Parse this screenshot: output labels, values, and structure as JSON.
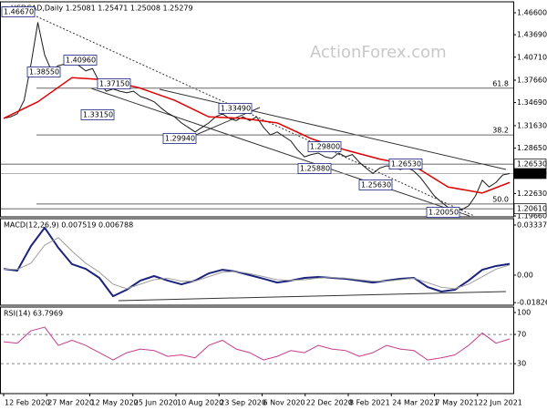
{
  "watermark": "ActionForex.com",
  "chart_data": [
    {
      "type": "line",
      "title": "USDCAD,Daily 1.25081 1.25471 1.25008 1.25279",
      "xlim": [
        0,
        74
      ],
      "ylim": [
        1.1954,
        1.4805
      ],
      "yticks": [
        {
          "value": 1.466,
          "label": "1.46600"
        },
        {
          "value": 1.4369,
          "label": "1.43690"
        },
        {
          "value": 1.4071,
          "label": "1.40710"
        },
        {
          "value": 1.3766,
          "label": "1.37660"
        },
        {
          "value": 1.3469,
          "label": "1.34690"
        },
        {
          "value": 1.3163,
          "label": "1.31630"
        },
        {
          "value": 1.2865,
          "label": "1.28650"
        },
        {
          "value": 1.2263,
          "label": "1.22630"
        },
        {
          "value": 1.1966,
          "label": "1.19660"
        }
      ],
      "series": [
        {
          "name": "USDCAD",
          "color": "#1a1a1a",
          "values": [
            1.326,
            1.328,
            1.332,
            1.35,
            1.398,
            1.453,
            1.41,
            1.389,
            1.396,
            1.398,
            1.401,
            1.396,
            1.389,
            1.392,
            1.374,
            1.362,
            1.365,
            1.362,
            1.36,
            1.362,
            1.355,
            1.352,
            1.348,
            1.34,
            1.333,
            1.328,
            1.32,
            1.314,
            1.308,
            1.314,
            1.32,
            1.328,
            1.332,
            1.326,
            1.323,
            1.328,
            1.323,
            1.328,
            1.314,
            1.304,
            1.308,
            1.302,
            1.296,
            1.284,
            1.275,
            1.278,
            1.28,
            1.275,
            1.273,
            1.28,
            1.275,
            1.278,
            1.268,
            1.26,
            1.253,
            1.26,
            1.263,
            1.262,
            1.258,
            1.261,
            1.256,
            1.247,
            1.235,
            1.223,
            1.215,
            1.208,
            1.205,
            1.205,
            1.21,
            1.223,
            1.244,
            1.235,
            1.241,
            1.251,
            1.25279
          ]
        },
        {
          "name": "MA",
          "color": "#e00000",
          "x": [
            0,
            5,
            10,
            15,
            20,
            25,
            30,
            35,
            40,
            45,
            50,
            55,
            60,
            65,
            70,
            74
          ],
          "values": [
            1.326,
            1.348,
            1.38,
            1.377,
            1.366,
            1.35,
            1.328,
            1.326,
            1.32,
            1.299,
            1.284,
            1.272,
            1.263,
            1.235,
            1.227,
            1.241
          ]
        }
      ],
      "annotations": [
        "1.46670",
        "1.38550",
        "1.40960",
        "1.37150",
        "1.33150",
        "1.29940",
        "1.33490",
        "1.29800",
        "1.25880",
        "1.25630",
        "1.26530",
        "1.20050"
      ],
      "fib_levels": [
        {
          "label": "61.8",
          "price": 1.366
        },
        {
          "label": "38.2",
          "price": 1.304
        },
        {
          "label": "50.0",
          "price": 1.2124
        }
      ],
      "price_levels": [
        {
          "value": 1.2653,
          "label": "1.26530"
        },
        {
          "value": 1.25279,
          "label": "1.25279",
          "current": true
        },
        {
          "value": 1.2061,
          "label": "1.20610"
        }
      ]
    },
    {
      "type": "line",
      "title": "MACD(12,26,9) 0.007519 0.006788",
      "xlim": [
        0,
        74
      ],
      "ylim": [
        -0.02,
        0.0376
      ],
      "yticks": [
        0.03337,
        {
          "value": 0,
          "label": "0.00"
        },
        -0.018262
      ],
      "x": [
        0,
        2,
        4,
        6,
        8,
        10,
        12,
        14,
        16,
        18,
        20,
        22,
        24,
        26,
        28,
        30,
        32,
        34,
        36,
        38,
        40,
        42,
        44,
        46,
        48,
        50,
        52,
        54,
        56,
        58,
        60,
        62,
        64,
        66,
        68,
        70,
        72,
        74
      ],
      "series": [
        {
          "name": "MACD",
          "color": "#1a237e",
          "width": 2,
          "values": [
            0.0042,
            0.003,
            0.0194,
            0.0316,
            0.0182,
            0.0073,
            0.0042,
            -0.0018,
            -0.014,
            -0.0097,
            -0.0036,
            -0.0006,
            -0.0036,
            -0.0061,
            -0.0036,
            0.0012,
            0.0036,
            0.0024,
            0,
            -0.0024,
            -0.0049,
            -0.0036,
            -0.0018,
            -0.0012,
            -0.0018,
            -0.0024,
            -0.0036,
            -0.0049,
            -0.0036,
            -0.0024,
            -0.0018,
            -0.0079,
            -0.0109,
            -0.0097,
            -0.0036,
            0.0036,
            0.0061,
            0.007519
          ]
        },
        {
          "name": "Signal",
          "color": "#9e9e9e",
          "width": 1,
          "values": [
            0.004,
            0.0038,
            0.008,
            0.02,
            0.025,
            0.016,
            0.008,
            0.002,
            -0.006,
            -0.009,
            -0.006,
            -0.003,
            -0.002,
            -0.004,
            -0.004,
            -0.001,
            0.002,
            0.0025,
            0.001,
            -0.001,
            -0.003,
            -0.0035,
            -0.003,
            -0.002,
            -0.0016,
            -0.002,
            -0.003,
            -0.004,
            -0.004,
            -0.003,
            -0.002,
            -0.005,
            -0.008,
            -0.009,
            -0.006,
            -0.001,
            0.004,
            0.006788
          ]
        }
      ]
    },
    {
      "type": "line",
      "title": "RSI(14) 63.7969",
      "xlim": [
        0,
        74
      ],
      "ylim": [
        -11,
        107.5
      ],
      "yticks": [
        100,
        70,
        30
      ],
      "levels": [
        70,
        30
      ],
      "x": [
        0,
        2,
        4,
        6,
        8,
        10,
        12,
        14,
        16,
        18,
        20,
        22,
        24,
        26,
        28,
        30,
        32,
        34,
        36,
        38,
        40,
        42,
        44,
        46,
        48,
        50,
        52,
        54,
        56,
        58,
        60,
        62,
        64,
        66,
        68,
        70,
        72,
        74
      ],
      "series": [
        {
          "name": "RSI",
          "color": "#c83c8c",
          "width": 1,
          "values": [
            60,
            58,
            75,
            80,
            55,
            62,
            55,
            45,
            35,
            45,
            50,
            48,
            40,
            42,
            38,
            55,
            62,
            50,
            45,
            35,
            40,
            48,
            45,
            55,
            50,
            48,
            40,
            45,
            55,
            50,
            48,
            35,
            38,
            42,
            55,
            72,
            58,
            63.7969
          ]
        }
      ],
      "xticks": [
        {
          "value": 0,
          "label": "12 Feb 2020"
        },
        {
          "value": 6.3,
          "label": "27 Mar 2020"
        },
        {
          "value": 12.6,
          "label": "12 May 2020"
        },
        {
          "value": 18.9,
          "label": "25 Jun 2020"
        },
        {
          "value": 25.2,
          "label": "10 Aug 2020"
        },
        {
          "value": 31.5,
          "label": "23 Sep 2020"
        },
        {
          "value": 37.8,
          "label": "6 Nov 2020"
        },
        {
          "value": 44.1,
          "label": "22 Dec 2020"
        },
        {
          "value": 50.4,
          "label": "8 Feb 2021"
        },
        {
          "value": 56.7,
          "label": "24 Mar 2021"
        },
        {
          "value": 63,
          "label": "7 May 2021"
        },
        {
          "value": 69.3,
          "label": "22 Jun 2021"
        }
      ]
    }
  ]
}
